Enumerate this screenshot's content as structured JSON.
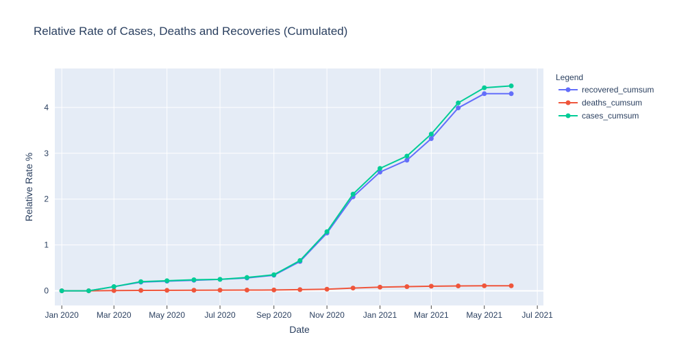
{
  "chart_data": {
    "type": "line",
    "title": "Relative Rate of Cases, Deaths and Recoveries (Cumulated)",
    "xlabel": "Date",
    "ylabel": "Relative Rate %",
    "x": [
      "2020-01-01",
      "2020-02-01",
      "2020-03-01",
      "2020-04-01",
      "2020-05-01",
      "2020-06-01",
      "2020-07-01",
      "2020-08-01",
      "2020-09-01",
      "2020-10-01",
      "2020-11-01",
      "2020-12-01",
      "2021-01-01",
      "2021-02-01",
      "2021-03-01",
      "2021-04-01",
      "2021-05-01",
      "2021-06-01"
    ],
    "xlim": [
      "2019-12-24",
      "2021-07-08"
    ],
    "x_ticks": [
      {
        "value": "2020-01-01",
        "label": "Jan 2020"
      },
      {
        "value": "2020-03-01",
        "label": "Mar 2020"
      },
      {
        "value": "2020-05-01",
        "label": "May 2020"
      },
      {
        "value": "2020-07-01",
        "label": "Jul 2020"
      },
      {
        "value": "2020-09-01",
        "label": "Sep 2020"
      },
      {
        "value": "2020-11-01",
        "label": "Nov 2020"
      },
      {
        "value": "2021-01-01",
        "label": "Jan 2021"
      },
      {
        "value": "2021-03-01",
        "label": "Mar 2021"
      },
      {
        "value": "2021-05-01",
        "label": "May 2021"
      },
      {
        "value": "2021-07-01",
        "label": "Jul 2021"
      }
    ],
    "ylim": [
      -0.32,
      4.85
    ],
    "y_ticks": [
      {
        "value": 0,
        "label": "0"
      },
      {
        "value": 1,
        "label": "1"
      },
      {
        "value": 2,
        "label": "2"
      },
      {
        "value": 3,
        "label": "3"
      },
      {
        "value": 4,
        "label": "4"
      }
    ],
    "grid": true,
    "legend": {
      "title": "Legend",
      "placement": "right"
    },
    "series": [
      {
        "name": "recovered_cumsum",
        "color": "#636efa",
        "values": [
          0,
          0,
          0.09,
          0.19,
          0.21,
          0.23,
          0.25,
          0.28,
          0.34,
          0.64,
          1.26,
          2.05,
          2.59,
          2.85,
          3.32,
          3.99,
          4.3,
          4.3
        ]
      },
      {
        "name": "deaths_cumsum",
        "color": "#ef553b",
        "values": [
          0,
          0,
          0.005,
          0.008,
          0.01,
          0.012,
          0.014,
          0.016,
          0.018,
          0.025,
          0.035,
          0.06,
          0.08,
          0.09,
          0.1,
          0.105,
          0.11,
          0.11
        ]
      },
      {
        "name": "cases_cumsum",
        "color": "#00cc96",
        "values": [
          0,
          0,
          0.09,
          0.2,
          0.22,
          0.24,
          0.25,
          0.29,
          0.35,
          0.66,
          1.29,
          2.11,
          2.67,
          2.94,
          3.42,
          4.1,
          4.43,
          4.47
        ]
      }
    ]
  }
}
